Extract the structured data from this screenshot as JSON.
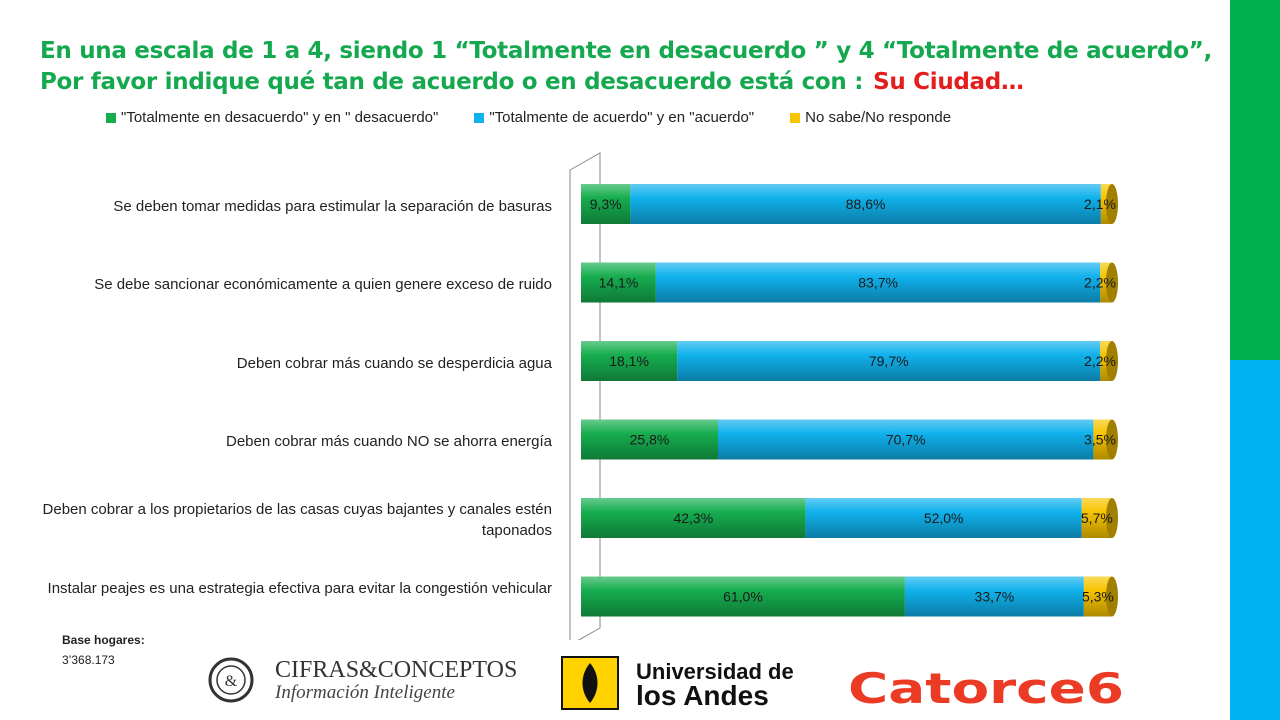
{
  "title": {
    "text": "En una escala de 1 a 4, siendo 1 “Totalmente en desacuerdo ” y 4 “Totalmente de acuerdo”, Por favor indique qué tan de acuerdo o en desacuerdo está con :",
    "highlight": "Su Ciudad…"
  },
  "colors": {
    "title": "#14a84f",
    "highlight": "#e41d1d",
    "green": "#16ad4f",
    "blue": "#10b1ec",
    "yellow": "#f7c400",
    "side_top": "#00b050",
    "side_bottom": "#00b0f0"
  },
  "chart_data": {
    "type": "bar",
    "orientation": "horizontal",
    "stacked": true,
    "style": "3d-cylinder",
    "categories": [
      "Se deben tomar medidas para estimular la separación de basuras",
      "Se debe sancionar económicamente a quien  genere exceso de ruido",
      "Deben cobrar más cuando se desperdicia  agua",
      "Deben cobrar más cuando NO se ahorra energía",
      "Deben cobrar a los propietarios de las casas cuyas bajantes  y canales estén taponados",
      "Instalar peajes es una estrategia efectiva para  evitar la congestión vehicular"
    ],
    "series": [
      {
        "name": "\"Totalmente en desacuerdo\" y en \" desacuerdo\"",
        "color": "#16ad4f",
        "values": [
          9.3,
          14.1,
          18.1,
          25.8,
          42.3,
          61.0
        ],
        "labels": [
          "9,3%",
          "14,1%",
          "18,1%",
          "25,8%",
          "42,3%",
          "61,0%"
        ]
      },
      {
        "name": "\"Totalmente de acuerdo\" y en \"acuerdo\"",
        "color": "#10b1ec",
        "values": [
          88.6,
          83.7,
          79.7,
          70.7,
          52.0,
          33.7
        ],
        "labels": [
          "88,6%",
          "83,7%",
          "79,7%",
          "70,7%",
          "52,0%",
          "33,7%"
        ]
      },
      {
        "name": "No sabe/No responde",
        "color": "#f7c400",
        "values": [
          2.1,
          2.2,
          2.2,
          3.5,
          5.7,
          5.3
        ],
        "labels": [
          "2,1%",
          "2,2%",
          "2,2%",
          "3,5%",
          "5,7%",
          "5,3%"
        ]
      }
    ],
    "xlim": [
      0,
      100
    ],
    "legend": "top",
    "grid": false
  },
  "base": {
    "label": "Base hogares:",
    "value": "3’368.173"
  },
  "logos": {
    "cifras": {
      "line1": "CIFRAS&CONCEPTOS",
      "line2": "Información Inteligente"
    },
    "uniandes": {
      "line1": "Universidad de",
      "line2": "los Andes"
    },
    "catorce": {
      "text": "Catorce6"
    }
  }
}
